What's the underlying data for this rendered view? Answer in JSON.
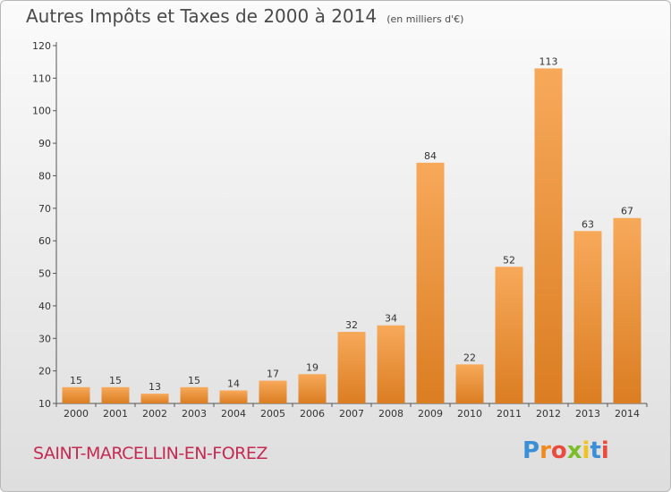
{
  "chart_data": {
    "type": "bar",
    "title": "Autres Impôts et Taxes de 2000 à 2014",
    "subtitle": "(en milliers d'€)",
    "categories": [
      "2000",
      "2001",
      "2002",
      "2003",
      "2004",
      "2005",
      "2006",
      "2007",
      "2008",
      "2009",
      "2010",
      "2011",
      "2012",
      "2013",
      "2014"
    ],
    "values": [
      15,
      15,
      13,
      15,
      14,
      17,
      19,
      32,
      34,
      84,
      22,
      52,
      113,
      63,
      67
    ],
    "ylim": [
      10,
      120
    ],
    "yticks": [
      10,
      20,
      30,
      40,
      50,
      60,
      70,
      80,
      90,
      100,
      110,
      120
    ],
    "xlabel": "",
    "ylabel": "",
    "grid": false,
    "bar_color": "#f5a04e"
  },
  "commune": "SAINT-MARCELLIN-EN-FOREZ",
  "logo": {
    "letters": [
      "P",
      "r",
      "o",
      "x",
      "i",
      "t",
      "i"
    ],
    "colors": [
      "#3a8fd6",
      "#f08a1c",
      "#e94b3c",
      "#7cbd2a",
      "#f2c21b",
      "#3a8fd6",
      "#e94b3c"
    ]
  }
}
